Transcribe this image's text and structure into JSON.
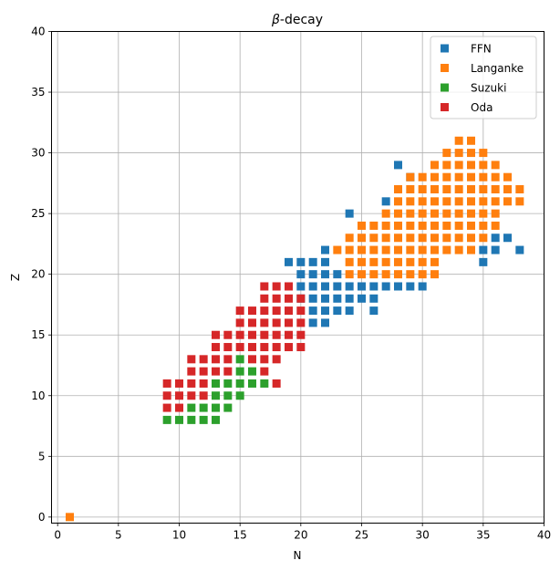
{
  "chart_data": {
    "type": "scatter",
    "title_symbol": "β",
    "title_rest": "-decay",
    "xlabel": "N",
    "ylabel": "Z",
    "xlim": [
      -0.5,
      40
    ],
    "ylim": [
      -0.5,
      40
    ],
    "xticks": [
      0,
      5,
      10,
      15,
      20,
      25,
      30,
      35,
      40
    ],
    "yticks": [
      0,
      5,
      10,
      15,
      20,
      25,
      30,
      35,
      40
    ],
    "grid": true,
    "legend_position": "top-right",
    "series": [
      {
        "name": "FFN",
        "color": "#1f77b4",
        "points": [
          [
            28,
            29
          ],
          [
            29,
            28
          ],
          [
            27,
            26
          ],
          [
            24,
            25
          ],
          [
            22,
            22
          ],
          [
            22,
            21
          ],
          [
            21,
            21
          ],
          [
            20,
            21
          ],
          [
            19,
            21
          ],
          [
            20,
            20
          ],
          [
            21,
            20
          ],
          [
            22,
            20
          ],
          [
            23,
            20
          ],
          [
            20,
            19
          ],
          [
            21,
            19
          ],
          [
            22,
            19
          ],
          [
            23,
            19
          ],
          [
            24,
            19
          ],
          [
            25,
            19
          ],
          [
            26,
            19
          ],
          [
            27,
            19
          ],
          [
            28,
            19
          ],
          [
            29,
            19
          ],
          [
            30,
            19
          ],
          [
            20,
            18
          ],
          [
            21,
            18
          ],
          [
            22,
            18
          ],
          [
            23,
            18
          ],
          [
            24,
            18
          ],
          [
            25,
            18
          ],
          [
            26,
            18
          ],
          [
            21,
            17
          ],
          [
            22,
            17
          ],
          [
            23,
            17
          ],
          [
            24,
            17
          ],
          [
            26,
            17
          ],
          [
            21,
            16
          ],
          [
            22,
            16
          ],
          [
            35,
            21
          ],
          [
            35,
            22
          ],
          [
            36,
            22
          ],
          [
            36,
            23
          ],
          [
            37,
            23
          ],
          [
            38,
            22
          ]
        ]
      },
      {
        "name": "Langanke",
        "color": "#ff7f0e",
        "points": [
          [
            1,
            0
          ],
          [
            33,
            31
          ],
          [
            34,
            31
          ],
          [
            32,
            30
          ],
          [
            33,
            30
          ],
          [
            34,
            30
          ],
          [
            35,
            30
          ],
          [
            31,
            29
          ],
          [
            32,
            29
          ],
          [
            33,
            29
          ],
          [
            34,
            29
          ],
          [
            35,
            29
          ],
          [
            36,
            29
          ],
          [
            29,
            28
          ],
          [
            30,
            28
          ],
          [
            31,
            28
          ],
          [
            32,
            28
          ],
          [
            33,
            28
          ],
          [
            34,
            28
          ],
          [
            35,
            28
          ],
          [
            36,
            28
          ],
          [
            37,
            28
          ],
          [
            28,
            27
          ],
          [
            29,
            27
          ],
          [
            30,
            27
          ],
          [
            31,
            27
          ],
          [
            32,
            27
          ],
          [
            33,
            27
          ],
          [
            34,
            27
          ],
          [
            35,
            27
          ],
          [
            36,
            27
          ],
          [
            37,
            27
          ],
          [
            38,
            27
          ],
          [
            28,
            26
          ],
          [
            29,
            26
          ],
          [
            30,
            26
          ],
          [
            31,
            26
          ],
          [
            32,
            26
          ],
          [
            33,
            26
          ],
          [
            34,
            26
          ],
          [
            35,
            26
          ],
          [
            36,
            26
          ],
          [
            37,
            26
          ],
          [
            38,
            26
          ],
          [
            27,
            25
          ],
          [
            28,
            25
          ],
          [
            29,
            25
          ],
          [
            30,
            25
          ],
          [
            31,
            25
          ],
          [
            32,
            25
          ],
          [
            33,
            25
          ],
          [
            34,
            25
          ],
          [
            35,
            25
          ],
          [
            36,
            25
          ],
          [
            25,
            24
          ],
          [
            26,
            24
          ],
          [
            27,
            24
          ],
          [
            28,
            24
          ],
          [
            29,
            24
          ],
          [
            30,
            24
          ],
          [
            31,
            24
          ],
          [
            32,
            24
          ],
          [
            33,
            24
          ],
          [
            34,
            24
          ],
          [
            35,
            24
          ],
          [
            36,
            24
          ],
          [
            24,
            23
          ],
          [
            25,
            23
          ],
          [
            26,
            23
          ],
          [
            27,
            23
          ],
          [
            28,
            23
          ],
          [
            29,
            23
          ],
          [
            30,
            23
          ],
          [
            31,
            23
          ],
          [
            32,
            23
          ],
          [
            33,
            23
          ],
          [
            34,
            23
          ],
          [
            35,
            23
          ],
          [
            23,
            22
          ],
          [
            24,
            22
          ],
          [
            25,
            22
          ],
          [
            26,
            22
          ],
          [
            27,
            22
          ],
          [
            28,
            22
          ],
          [
            29,
            22
          ],
          [
            30,
            22
          ],
          [
            31,
            22
          ],
          [
            32,
            22
          ],
          [
            33,
            22
          ],
          [
            34,
            22
          ],
          [
            24,
            21
          ],
          [
            25,
            21
          ],
          [
            26,
            21
          ],
          [
            27,
            21
          ],
          [
            28,
            21
          ],
          [
            29,
            21
          ],
          [
            30,
            21
          ],
          [
            31,
            21
          ],
          [
            24,
            20
          ],
          [
            25,
            20
          ],
          [
            26,
            20
          ],
          [
            27,
            20
          ],
          [
            28,
            20
          ],
          [
            29,
            20
          ],
          [
            30,
            20
          ],
          [
            31,
            20
          ]
        ]
      },
      {
        "name": "Suzuki",
        "color": "#2ca02c",
        "points": [
          [
            15,
            13
          ],
          [
            15,
            12
          ],
          [
            16,
            12
          ],
          [
            13,
            11
          ],
          [
            14,
            11
          ],
          [
            15,
            11
          ],
          [
            16,
            11
          ],
          [
            17,
            11
          ],
          [
            13,
            10
          ],
          [
            14,
            10
          ],
          [
            15,
            10
          ],
          [
            11,
            9
          ],
          [
            12,
            9
          ],
          [
            13,
            9
          ],
          [
            14,
            9
          ],
          [
            9,
            8
          ],
          [
            10,
            8
          ],
          [
            11,
            8
          ],
          [
            12,
            8
          ],
          [
            13,
            8
          ]
        ]
      },
      {
        "name": "Oda",
        "color": "#d62728",
        "points": [
          [
            17,
            19
          ],
          [
            18,
            19
          ],
          [
            19,
            19
          ],
          [
            17,
            18
          ],
          [
            18,
            18
          ],
          [
            19,
            18
          ],
          [
            20,
            18
          ],
          [
            15,
            17
          ],
          [
            16,
            17
          ],
          [
            17,
            17
          ],
          [
            18,
            17
          ],
          [
            19,
            17
          ],
          [
            20,
            17
          ],
          [
            15,
            16
          ],
          [
            16,
            16
          ],
          [
            17,
            16
          ],
          [
            18,
            16
          ],
          [
            19,
            16
          ],
          [
            20,
            16
          ],
          [
            13,
            15
          ],
          [
            14,
            15
          ],
          [
            15,
            15
          ],
          [
            16,
            15
          ],
          [
            17,
            15
          ],
          [
            18,
            15
          ],
          [
            19,
            15
          ],
          [
            20,
            15
          ],
          [
            13,
            14
          ],
          [
            14,
            14
          ],
          [
            15,
            14
          ],
          [
            16,
            14
          ],
          [
            17,
            14
          ],
          [
            18,
            14
          ],
          [
            19,
            14
          ],
          [
            20,
            14
          ],
          [
            11,
            13
          ],
          [
            12,
            13
          ],
          [
            13,
            13
          ],
          [
            14,
            13
          ],
          [
            16,
            13
          ],
          [
            17,
            13
          ],
          [
            18,
            13
          ],
          [
            11,
            12
          ],
          [
            12,
            12
          ],
          [
            13,
            12
          ],
          [
            14,
            12
          ],
          [
            17,
            12
          ],
          [
            9,
            11
          ],
          [
            10,
            11
          ],
          [
            11,
            11
          ],
          [
            12,
            11
          ],
          [
            18,
            11
          ],
          [
            9,
            10
          ],
          [
            10,
            10
          ],
          [
            11,
            10
          ],
          [
            12,
            10
          ],
          [
            9,
            9
          ],
          [
            10,
            9
          ]
        ]
      }
    ]
  }
}
